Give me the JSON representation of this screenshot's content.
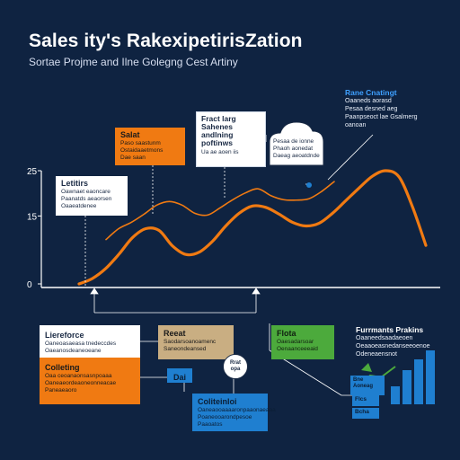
{
  "header": {
    "title": "Sales ity's RakexipetirisZation",
    "subtitle": "Sortae Projme and Ilne Golegng Cest Artiny"
  },
  "axis": {
    "ticks": [
      "25",
      "15",
      "0"
    ]
  },
  "annotations": {
    "orange_top": {
      "title": "Salat",
      "lines": [
        "Paso saastunm",
        "Ostaidaaetmons",
        "Dae saan"
      ]
    },
    "feature_box": {
      "title": "Fract larg\nSahenes\nandlning\npoftinws",
      "lines": [
        "Ua ae aoen iis"
      ]
    },
    "cloud": {
      "lines": [
        "Pesaa de ionne",
        "Phaoh aonedat",
        "Daeag aeoatdnde"
      ]
    },
    "right_top": {
      "title": "Rane Cnatingt",
      "lines": [
        "Oaaneds aorasd",
        "Pesaa desned aeg",
        "Paanpseoct lae Gsalmerg",
        "oanoan"
      ]
    },
    "left_box": {
      "title": "Letitirs",
      "lines": [
        "Oawnaet eaoncare",
        "Paanatds aeaorsen",
        "Oaaeatdenee"
      ]
    },
    "references": {
      "title": "Liereforce",
      "lines": [
        "Oaneoasaeasa tnedeccdes",
        "Oaeanosdeaneoeane"
      ]
    },
    "report": {
      "title": "Reeat",
      "lines": [
        "Saodarsoanoamenc",
        "Saneondeansed"
      ]
    },
    "fleta": {
      "title": "Flota",
      "lines": [
        "Oaesadarsoar",
        "Oenaanceeeaid"
      ]
    },
    "performance": {
      "title": "Furrmants Prakins",
      "lines": [
        "Oaaneedsaadaeoen",
        "Oeaaoeasnedanseeoenoe",
        "Odeneaensnot"
      ]
    },
    "collecting": {
      "title": "Colleting",
      "lines": [
        "Oaa ceoanaonsasnpoaaa",
        "Oaneaeordeaoneonneacae",
        "Paneaeaoro"
      ]
    },
    "blue_small": {
      "label": "Dai"
    },
    "bubble": {
      "text": "Rrat\nopa"
    },
    "conditions": {
      "title": "Coliteinloi",
      "lines": [
        "Oaneaooaaaaronpaaonaeaaa",
        "Poaneooarondpesoe",
        "Paaoatos"
      ]
    },
    "blocks": {
      "a": "Bne\nAoneag",
      "b": "Flcs",
      "c": "Bcha"
    }
  },
  "colors": {
    "background": "#0f2341",
    "accent_orange": "#f07a12",
    "accent_green": "#4caa3c",
    "accent_blue": "#1f7fd0",
    "accent_tan": "#c9ae82"
  },
  "chart_data": {
    "type": "line",
    "title": "",
    "xlabel": "",
    "ylabel": "",
    "ylim": [
      0,
      25
    ],
    "yticks": [
      0,
      15,
      25
    ],
    "series": [
      {
        "values": [
          0.0,
          1.2,
          3.4,
          6.6,
          10.2,
          12.2,
          11.8,
          8.4,
          6.5,
          7.0,
          9.4,
          12.8,
          15.6,
          17.2,
          16.9,
          15.4,
          13.6,
          12.8,
          13.4,
          15.6,
          18.4,
          21.2,
          23.8,
          25.0,
          23.6,
          17.0,
          8.5
        ]
      },
      {
        "values": [
          9.8,
          12.2,
          13.6,
          15.4,
          17.4,
          18.2,
          17.4,
          15.6,
          15.2,
          16.8,
          18.6,
          20.1,
          21.0,
          19.5,
          18.6,
          18.5,
          18.8,
          20.4,
          22.6
        ]
      }
    ]
  }
}
